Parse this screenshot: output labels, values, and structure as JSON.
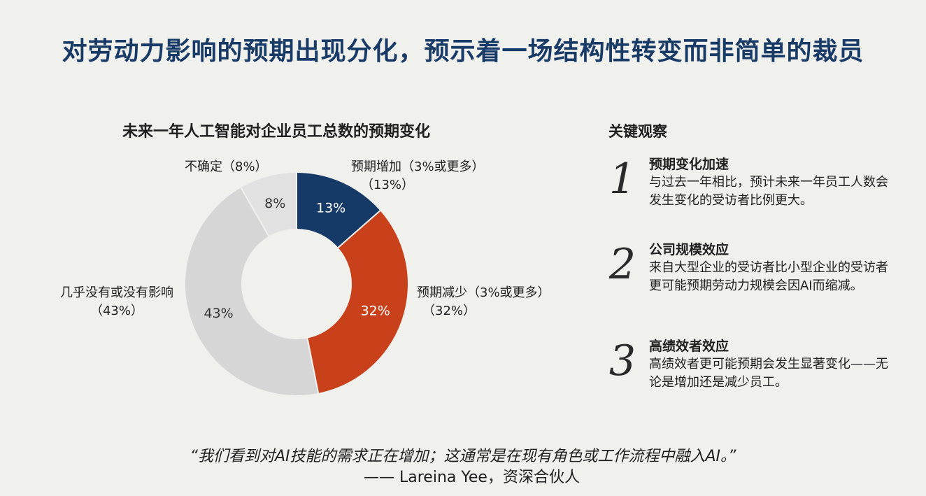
{
  "page": {
    "title": "对劳动力影响的预期出现分化，预示着一场结构性转变而非简单的裁员",
    "quote": "“我们看到对AI技能的需求正在增加；这通常是在现有角色或工作流程中融入AI。”",
    "attribution": "—— Lareina Yee，资深合伙人"
  },
  "observations": {
    "heading": "关键观察",
    "items": [
      {
        "number": "1",
        "title": "预期变化加速",
        "text": "与过去一年相比，预计未来一年员工人数会发生变化的受访者比例更大。"
      },
      {
        "number": "2",
        "title": "公司规模效应",
        "text": "来自大型企业的受访者比小型企业的受访者更可能预期劳动力规模会因AI而缩减。"
      },
      {
        "number": "3",
        "title": "高绩效者效应",
        "text": "高绩效者更可能预期会发生显著变化——无论是增加还是减少员工。"
      }
    ]
  },
  "colors": {
    "title": "#183a66",
    "increase": "#163a68",
    "decrease": "#c8411b",
    "no_change": "#d6d6d6",
    "uncertain": "#e1e1e1"
  },
  "chart_data": {
    "type": "pie",
    "title": "未来一年人工智能对企业员工总数的预期变化",
    "slices": [
      {
        "key": "increase",
        "value": 13,
        "inner_label": "13%",
        "label_line1": "预期增加（3%或更多）",
        "label_line2": "（13%）",
        "color": "#163a68",
        "inner_text_color": "#ffffff"
      },
      {
        "key": "decrease",
        "value": 32,
        "inner_label": "32%",
        "label_line1": "预期减少（3%或更多）",
        "label_line2": "（32%）",
        "color": "#c8411b",
        "inner_text_color": "#ffffff"
      },
      {
        "key": "no_change",
        "value": 43,
        "inner_label": "43%",
        "label_line1": "几乎没有或没有影响",
        "label_line2": "（43%）",
        "color": "#d6d6d6",
        "inner_text_color": "#333333"
      },
      {
        "key": "uncertain",
        "value": 8,
        "inner_label": "8%",
        "label_line1": "不确定（8%）",
        "label_line2": "",
        "color": "#e1e1e1",
        "inner_text_color": "#333333"
      }
    ]
  }
}
